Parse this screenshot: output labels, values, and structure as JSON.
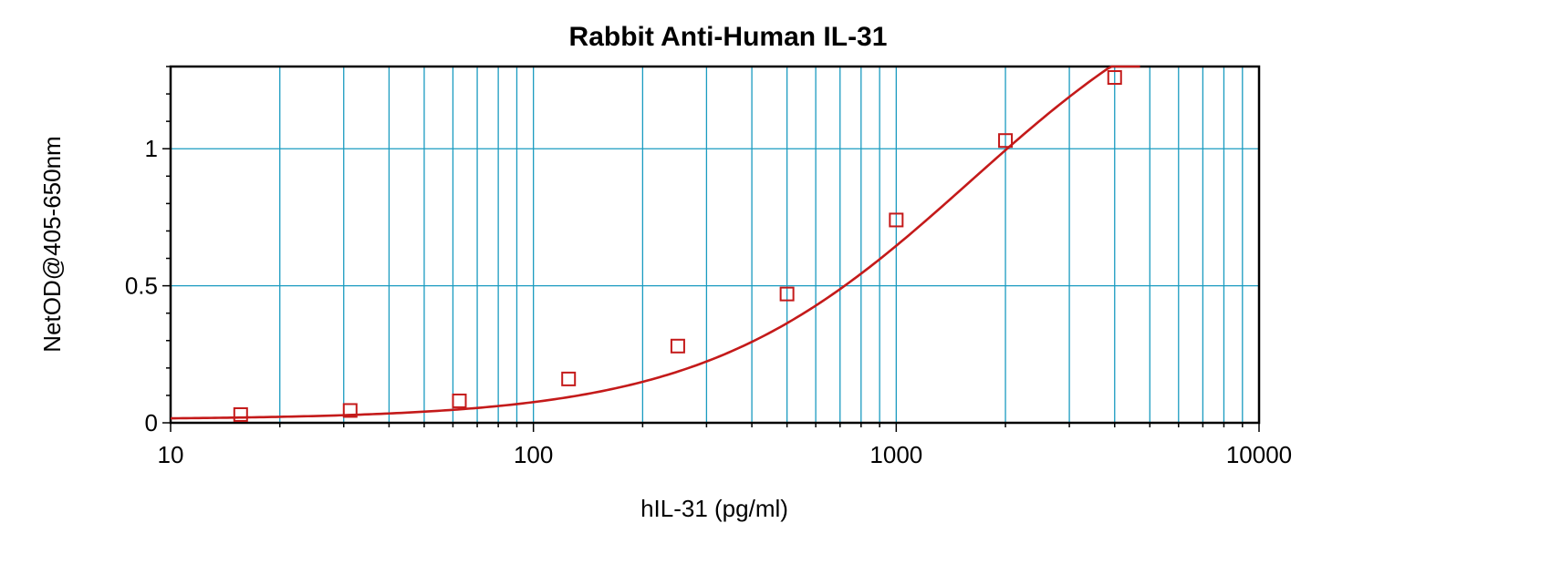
{
  "chart_data": {
    "type": "scatter",
    "title": "Rabbit Anti-Human IL-31",
    "xlabel": "hIL-31 (pg/ml)",
    "ylabel": "NetOD@405-650nm",
    "x_scale": "log",
    "xlim": [
      10,
      10000
    ],
    "ylim": [
      0,
      1.3
    ],
    "x_ticks": [
      10,
      100,
      1000,
      10000
    ],
    "x_tick_labels": [
      "10",
      "100",
      "1000",
      "10000"
    ],
    "y_ticks": [
      0,
      0.5,
      1
    ],
    "y_tick_labels": [
      "0",
      "0.5",
      "1"
    ],
    "grid": true,
    "legend": "none",
    "series": [
      {
        "marker": "square",
        "x": [
          15.6,
          31.25,
          62.5,
          125,
          250,
          500,
          1000,
          2000,
          4000
        ],
        "y": [
          0.03,
          0.045,
          0.08,
          0.16,
          0.28,
          0.47,
          0.74,
          1.03,
          1.26
        ]
      }
    ],
    "fit_curve": {
      "type": "4PL",
      "x_range": [
        10,
        4700
      ],
      "A": 0.012,
      "D": 1.75,
      "C": 1600,
      "B": 1.18
    },
    "colors": {
      "grid": "#1a9bc0",
      "series": "#c41a1a",
      "axis": "#000000",
      "background": "#ffffff"
    }
  }
}
